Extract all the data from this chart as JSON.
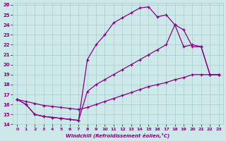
{
  "xlabel": "Windchill (Refroidissement éolien,°C)",
  "bg_color": "#cce8e8",
  "line_color": "#880088",
  "xlim": [
    -0.5,
    23.5
  ],
  "ylim": [
    14,
    26.2
  ],
  "yticks": [
    14,
    15,
    16,
    17,
    18,
    19,
    20,
    21,
    22,
    23,
    24,
    25,
    26
  ],
  "xticks": [
    0,
    1,
    2,
    3,
    4,
    5,
    6,
    7,
    8,
    9,
    10,
    11,
    12,
    13,
    14,
    15,
    16,
    17,
    18,
    19,
    20,
    21,
    22,
    23
  ],
  "series1_x": [
    0,
    1,
    2,
    3,
    4,
    5,
    6,
    7,
    8,
    9,
    10,
    11,
    12,
    13,
    14,
    15,
    16,
    17,
    18,
    19,
    20,
    21,
    22,
    23
  ],
  "series1_y": [
    16.5,
    16.0,
    15.0,
    14.8,
    14.7,
    14.6,
    14.5,
    14.4,
    20.5,
    22.0,
    23.0,
    24.2,
    24.7,
    25.2,
    25.7,
    25.8,
    24.8,
    25.0,
    24.0,
    21.8,
    22.0,
    21.8,
    19.0,
    19.0
  ],
  "series2_x": [
    0,
    1,
    2,
    3,
    4,
    5,
    6,
    7,
    8,
    9,
    10,
    11,
    12,
    13,
    14,
    15,
    16,
    17,
    18,
    19,
    20,
    21,
    22,
    23
  ],
  "series2_y": [
    16.5,
    16.0,
    15.0,
    14.8,
    14.7,
    14.6,
    14.5,
    14.4,
    17.3,
    18.0,
    18.5,
    19.0,
    19.5,
    20.0,
    20.5,
    21.0,
    21.5,
    22.0,
    24.0,
    23.5,
    21.8,
    21.8,
    19.0,
    19.0
  ],
  "series3_x": [
    0,
    1,
    2,
    3,
    4,
    5,
    6,
    7,
    8,
    9,
    10,
    11,
    12,
    13,
    14,
    15,
    16,
    17,
    18,
    19,
    20,
    21,
    22,
    23
  ],
  "series3_y": [
    16.5,
    16.3,
    16.1,
    15.9,
    15.8,
    15.7,
    15.6,
    15.5,
    15.7,
    16.0,
    16.3,
    16.6,
    16.9,
    17.2,
    17.5,
    17.8,
    18.0,
    18.2,
    18.5,
    18.7,
    19.0,
    19.0,
    19.0,
    19.0
  ],
  "grid_color": "#aacccc",
  "marker": "+"
}
